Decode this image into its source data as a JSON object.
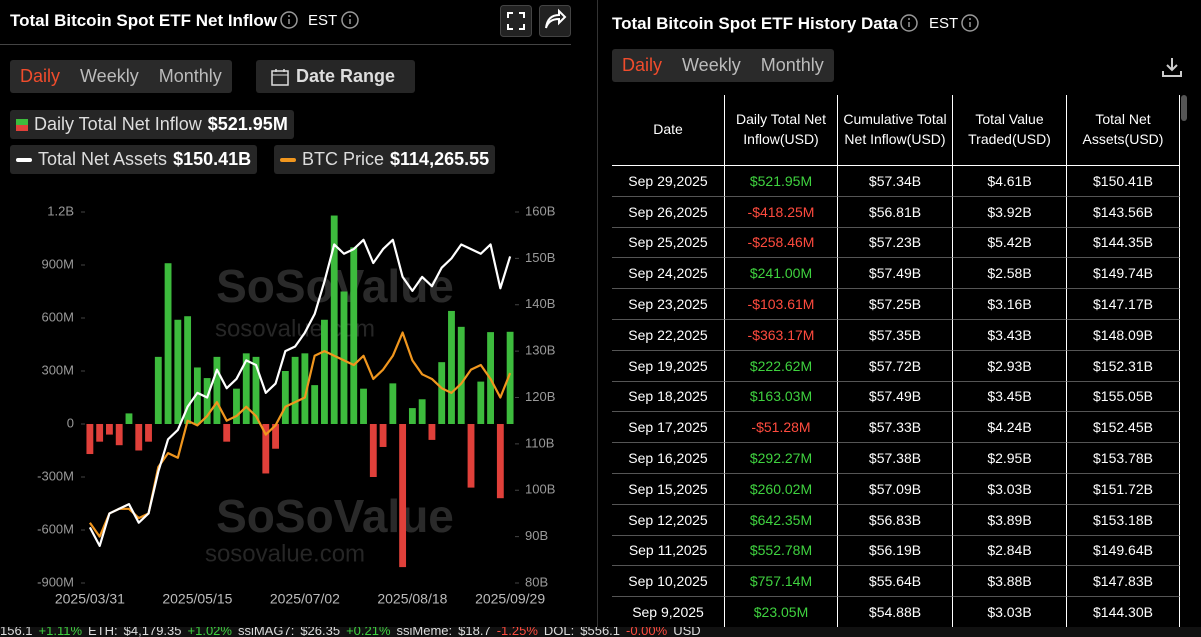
{
  "left_panel": {
    "title": "Total Bitcoin Spot ETF Net Inflow",
    "timezone": "EST",
    "tabs": [
      "Daily",
      "Weekly",
      "Monthly"
    ],
    "date_range": "Date Range"
  },
  "right_panel": {
    "title": "Total Bitcoin Spot ETF History Data",
    "timezone": "EST",
    "tabs": [
      "Daily",
      "Weekly",
      "Monthly"
    ]
  },
  "legend": [
    {
      "label": "Daily Total Net Inflow",
      "value": "$521.95M"
    },
    {
      "label": "Total Net Assets",
      "value": "$150.41B"
    },
    {
      "label": "BTC Price",
      "value": "$114,265.55"
    }
  ],
  "watermark": {
    "brand": "SoSoValue",
    "url": "sosovalue.com"
  },
  "chart_data": {
    "type": "bar",
    "categories": [
      "2025/03/31",
      null,
      null,
      null,
      null,
      null,
      null,
      null,
      null,
      null,
      null,
      "2025/05/15",
      null,
      null,
      null,
      null,
      null,
      null,
      null,
      null,
      null,
      null,
      "2025/07/02",
      null,
      null,
      null,
      null,
      null,
      null,
      null,
      null,
      null,
      null,
      "2025/08/18",
      null,
      null,
      null,
      null,
      null,
      null,
      null,
      null,
      null,
      "2025/09/29"
    ],
    "ylim": [
      -900,
      1200
    ],
    "yticks": [
      {
        "value": 1200,
        "label": "1.2B"
      },
      {
        "value": 900,
        "label": "900M"
      },
      {
        "value": 600,
        "label": "600M"
      },
      {
        "value": 300,
        "label": "300M"
      },
      0,
      {
        "value": -300,
        "label": "-300M"
      },
      {
        "value": -600,
        "label": "-600M"
      },
      {
        "value": -900,
        "label": "-900M"
      }
    ],
    "y2lim": [
      80,
      160
    ],
    "y2ticks": [
      {
        "value": 160,
        "label": "160B"
      },
      {
        "value": 150,
        "label": "150B"
      },
      {
        "value": 140,
        "label": "140B"
      },
      {
        "value": 130,
        "label": "130B"
      },
      {
        "value": 120,
        "label": "120B"
      },
      {
        "value": 110,
        "label": "110B"
      },
      {
        "value": 100,
        "label": "100B"
      },
      {
        "value": 90,
        "label": "90B"
      },
      {
        "value": 80,
        "label": "80B"
      }
    ],
    "series": [
      {
        "name": "Daily Total Net Inflow",
        "type": "bar",
        "color": "#3dbb3d",
        "negative_color": "#e0403a",
        "values": [
          -170,
          -100,
          -60,
          -120,
          60,
          -150,
          -100,
          380,
          910,
          590,
          610,
          320,
          260,
          380,
          -100,
          200,
          400,
          380,
          -280,
          -140,
          300,
          380,
          400,
          220,
          590,
          1180,
          750,
          1000,
          200,
          -300,
          -130,
          230,
          -810,
          90,
          140,
          -90,
          350,
          640,
          550,
          -360,
          240,
          520,
          -420,
          521.95
        ]
      },
      {
        "name": "Total Net Assets",
        "type": "line",
        "axis": "y2",
        "color": "#ffffff",
        "values": [
          92,
          88,
          95,
          96,
          97,
          93,
          95,
          104,
          111,
          113,
          118,
          121,
          120,
          126,
          122,
          124,
          128,
          127,
          121,
          123,
          130,
          131,
          134,
          138,
          145,
          153,
          151,
          152,
          154,
          149,
          152,
          154,
          146,
          143,
          146,
          144,
          148,
          150,
          153,
          152,
          151,
          153,
          143.56,
          150.41
        ]
      },
      {
        "name": "BTC Price",
        "type": "line",
        "axis": "y3",
        "y3lim": [
          69000,
          149000
        ],
        "color": "#f0961e",
        "values": [
          82000,
          79000,
          84000,
          85000,
          85000,
          83000,
          84000,
          94000,
          97000,
          96000,
          104000,
          103000,
          105000,
          108000,
          104000,
          105000,
          107000,
          105000,
          101000,
          103000,
          107000,
          108000,
          109000,
          118000,
          119000,
          118000,
          117000,
          116000,
          118000,
          113000,
          115000,
          118000,
          123000,
          117000,
          114000,
          113000,
          111000,
          110000,
          112000,
          115000,
          116000,
          113000,
          109000,
          114265.55
        ]
      }
    ]
  },
  "table": {
    "headers": [
      "Date",
      "Daily Total Net Inflow(USD)",
      "Cumulative Total Net Inflow(USD)",
      "Total Value Traded(USD)",
      "Total Net Assets(USD)"
    ],
    "rows": [
      [
        "Sep 29,2025",
        "$521.95M",
        "$57.34B",
        "$4.61B",
        "$150.41B"
      ],
      [
        "Sep 26,2025",
        "-$418.25M",
        "$56.81B",
        "$3.92B",
        "$143.56B"
      ],
      [
        "Sep 25,2025",
        "-$258.46M",
        "$57.23B",
        "$5.42B",
        "$144.35B"
      ],
      [
        "Sep 24,2025",
        "$241.00M",
        "$57.49B",
        "$2.58B",
        "$149.74B"
      ],
      [
        "Sep 23,2025",
        "-$103.61M",
        "$57.25B",
        "$3.16B",
        "$147.17B"
      ],
      [
        "Sep 22,2025",
        "-$363.17M",
        "$57.35B",
        "$3.43B",
        "$148.09B"
      ],
      [
        "Sep 19,2025",
        "$222.62M",
        "$57.72B",
        "$2.93B",
        "$152.31B"
      ],
      [
        "Sep 18,2025",
        "$163.03M",
        "$57.49B",
        "$3.45B",
        "$155.05B"
      ],
      [
        "Sep 17,2025",
        "-$51.28M",
        "$57.33B",
        "$4.24B",
        "$152.45B"
      ],
      [
        "Sep 16,2025",
        "$292.27M",
        "$57.38B",
        "$2.95B",
        "$153.78B"
      ],
      [
        "Sep 15,2025",
        "$260.02M",
        "$57.09B",
        "$3.03B",
        "$151.72B"
      ],
      [
        "Sep 12,2025",
        "$642.35M",
        "$56.83B",
        "$3.89B",
        "$153.18B"
      ],
      [
        "Sep 11,2025",
        "$552.78M",
        "$56.19B",
        "$2.84B",
        "$149.64B"
      ],
      [
        "Sep 10,2025",
        "$757.14M",
        "$55.64B",
        "$3.88B",
        "$147.83B"
      ],
      [
        "Sep 9,2025",
        "$23.05M",
        "$54.88B",
        "$3.03B",
        "$144.30B"
      ]
    ]
  },
  "ticker": [
    "156.1",
    "+1.11%",
    "ETH:",
    "$4,179.35",
    "+1.02%",
    "ssiMAG7:",
    "$26.35",
    "+0.21%",
    "ssiMeme:",
    "$18.7",
    "-1.25%",
    "DOL:",
    "$556.1",
    "-0.00%",
    "USD"
  ]
}
